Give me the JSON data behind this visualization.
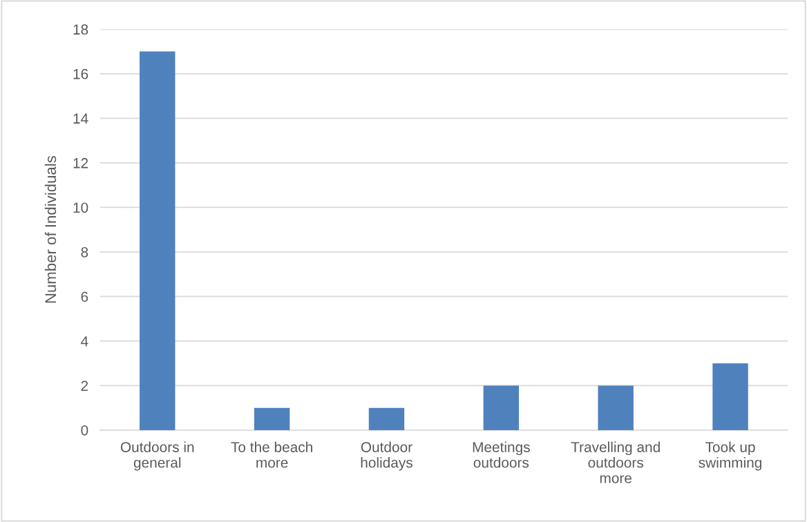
{
  "chart_data": {
    "type": "bar",
    "ylabel": "Number of Individuals",
    "categories": [
      "Outdoors in\ngeneral",
      "To the beach\nmore",
      "Outdoor\nholidays",
      "Meetings\noutdoors",
      "Travelling and\noutdoors\nmore",
      "Took up\nswimming"
    ],
    "values": [
      17,
      1,
      1,
      2,
      2,
      3
    ],
    "color": "#4f81bd",
    "ylim": [
      0,
      18
    ],
    "yticks": [
      0,
      2,
      4,
      6,
      8,
      10,
      12,
      14,
      16,
      18
    ],
    "grid": "y",
    "legend": false
  }
}
